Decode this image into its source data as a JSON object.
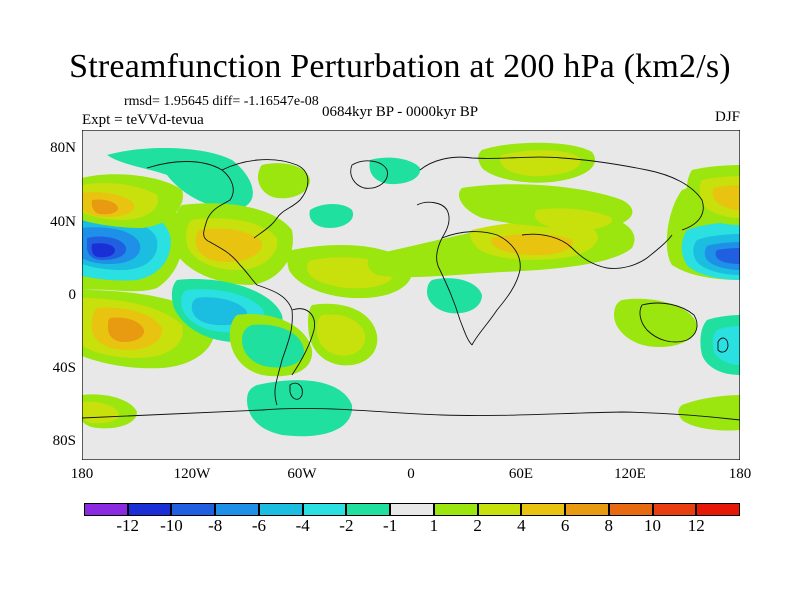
{
  "title": "Streamfunction Perturbation at 200 hPa (km2/s)",
  "stats": "rmsd= 1.95645 diff= -1.16547e-08",
  "experiment": "Expt = teVVd-tevua",
  "period": "0684kyr BP - 0000kyr BP",
  "season": "DJF",
  "chart_data": {
    "type": "heatmap",
    "title": "Streamfunction Perturbation at 200 hPa (km2/s)",
    "x_ticks": [
      "180",
      "120W",
      "60W",
      "0",
      "60E",
      "120E",
      "180"
    ],
    "y_ticks": [
      "80N",
      "40N",
      "0",
      "40S",
      "80S"
    ],
    "xlim": [
      -180,
      180
    ],
    "ylim": [
      -90,
      90
    ],
    "colorbar": {
      "labels": [
        "-12",
        "-10",
        "-8",
        "-6",
        "-4",
        "-2",
        "-1",
        "1",
        "2",
        "4",
        "6",
        "8",
        "10",
        "12"
      ],
      "colors": [
        "#8a2be2",
        "#1a2fd6",
        "#2060e0",
        "#1e90e8",
        "#1bbde0",
        "#2ae0e0",
        "#20e0a0",
        "#e8e8e8",
        "#9ae60e",
        "#c8e00c",
        "#e8c410",
        "#e89a10",
        "#e86a10",
        "#e83e10",
        "#e81808"
      ]
    },
    "features": [
      {
        "name": "negative low",
        "lon": -165,
        "lat": 22,
        "value": -10
      },
      {
        "name": "negative low",
        "lon": 178,
        "lat": 22,
        "value": -8
      },
      {
        "name": "positive high",
        "lon": -165,
        "lat": 45,
        "value": 6
      },
      {
        "name": "positive high",
        "lon": -168,
        "lat": -17,
        "value": 6
      },
      {
        "name": "positive high",
        "lon": -95,
        "lat": 22,
        "value": 4
      },
      {
        "name": "positive high",
        "lon": 45,
        "lat": 25,
        "value": 4
      },
      {
        "name": "positive high",
        "lon": 175,
        "lat": 48,
        "value": 4
      },
      {
        "name": "negative low",
        "lon": -120,
        "lat": -15,
        "value": -4
      },
      {
        "name": "negative low",
        "lon": 175,
        "lat": -40,
        "value": -4
      },
      {
        "name": "negative low",
        "lon": -75,
        "lat": -60,
        "value": -2
      }
    ]
  }
}
